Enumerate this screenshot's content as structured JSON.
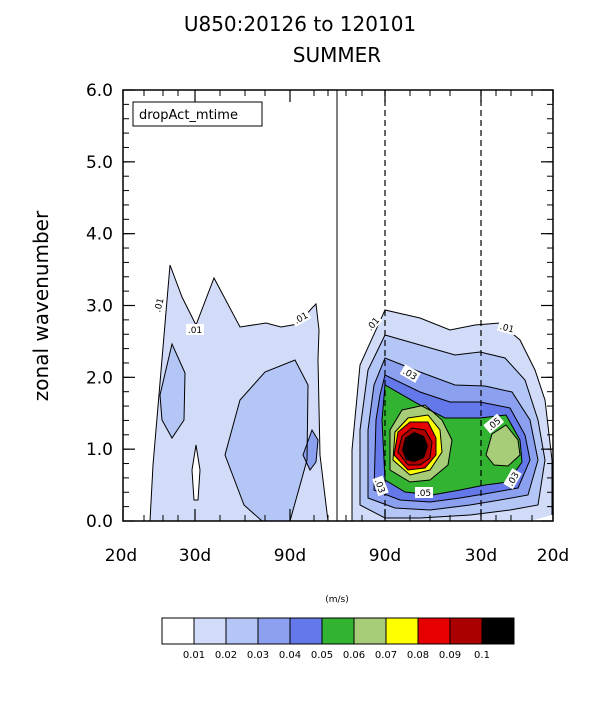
{
  "chart_data": {
    "type": "contour",
    "title_line1": "U850:20126 to 120101",
    "title_line2": "SUMMER",
    "ylabel": "zonal wavenumber",
    "xlabel": "",
    "ylim": [
      0,
      6
    ],
    "yticks": [
      "0.0",
      "1.0",
      "2.0",
      "3.0",
      "4.0",
      "5.0",
      "6.0"
    ],
    "xticks": [
      "20d",
      "30d",
      "90d",
      "90d",
      "30d",
      "20d"
    ],
    "legend_box": "dropAct_mtime",
    "units": "(m/s)",
    "contour_levels": [
      "0.01",
      "0.02",
      "0.03",
      "0.04",
      "0.05",
      "0.06",
      "0.07",
      "0.08",
      "0.09",
      "0.1"
    ],
    "fill_colors": [
      "#ffffff",
      "#d2dcf8",
      "#b4c6f5",
      "#8ca0f0",
      "#6478ea",
      "#32b432",
      "#a8cd78",
      "#ffff00",
      "#e60000",
      "#aa0000",
      "#000000"
    ],
    "contour_labels": [
      ".01",
      ".01",
      ".01",
      ".01",
      ".01",
      ".03",
      ".05",
      ".05",
      ".03",
      ".03"
    ],
    "westward_max": 0.03,
    "eastward_max": 0.1,
    "eastward_peak": {
      "wavenumber": 1.0,
      "period": "~60d"
    }
  }
}
